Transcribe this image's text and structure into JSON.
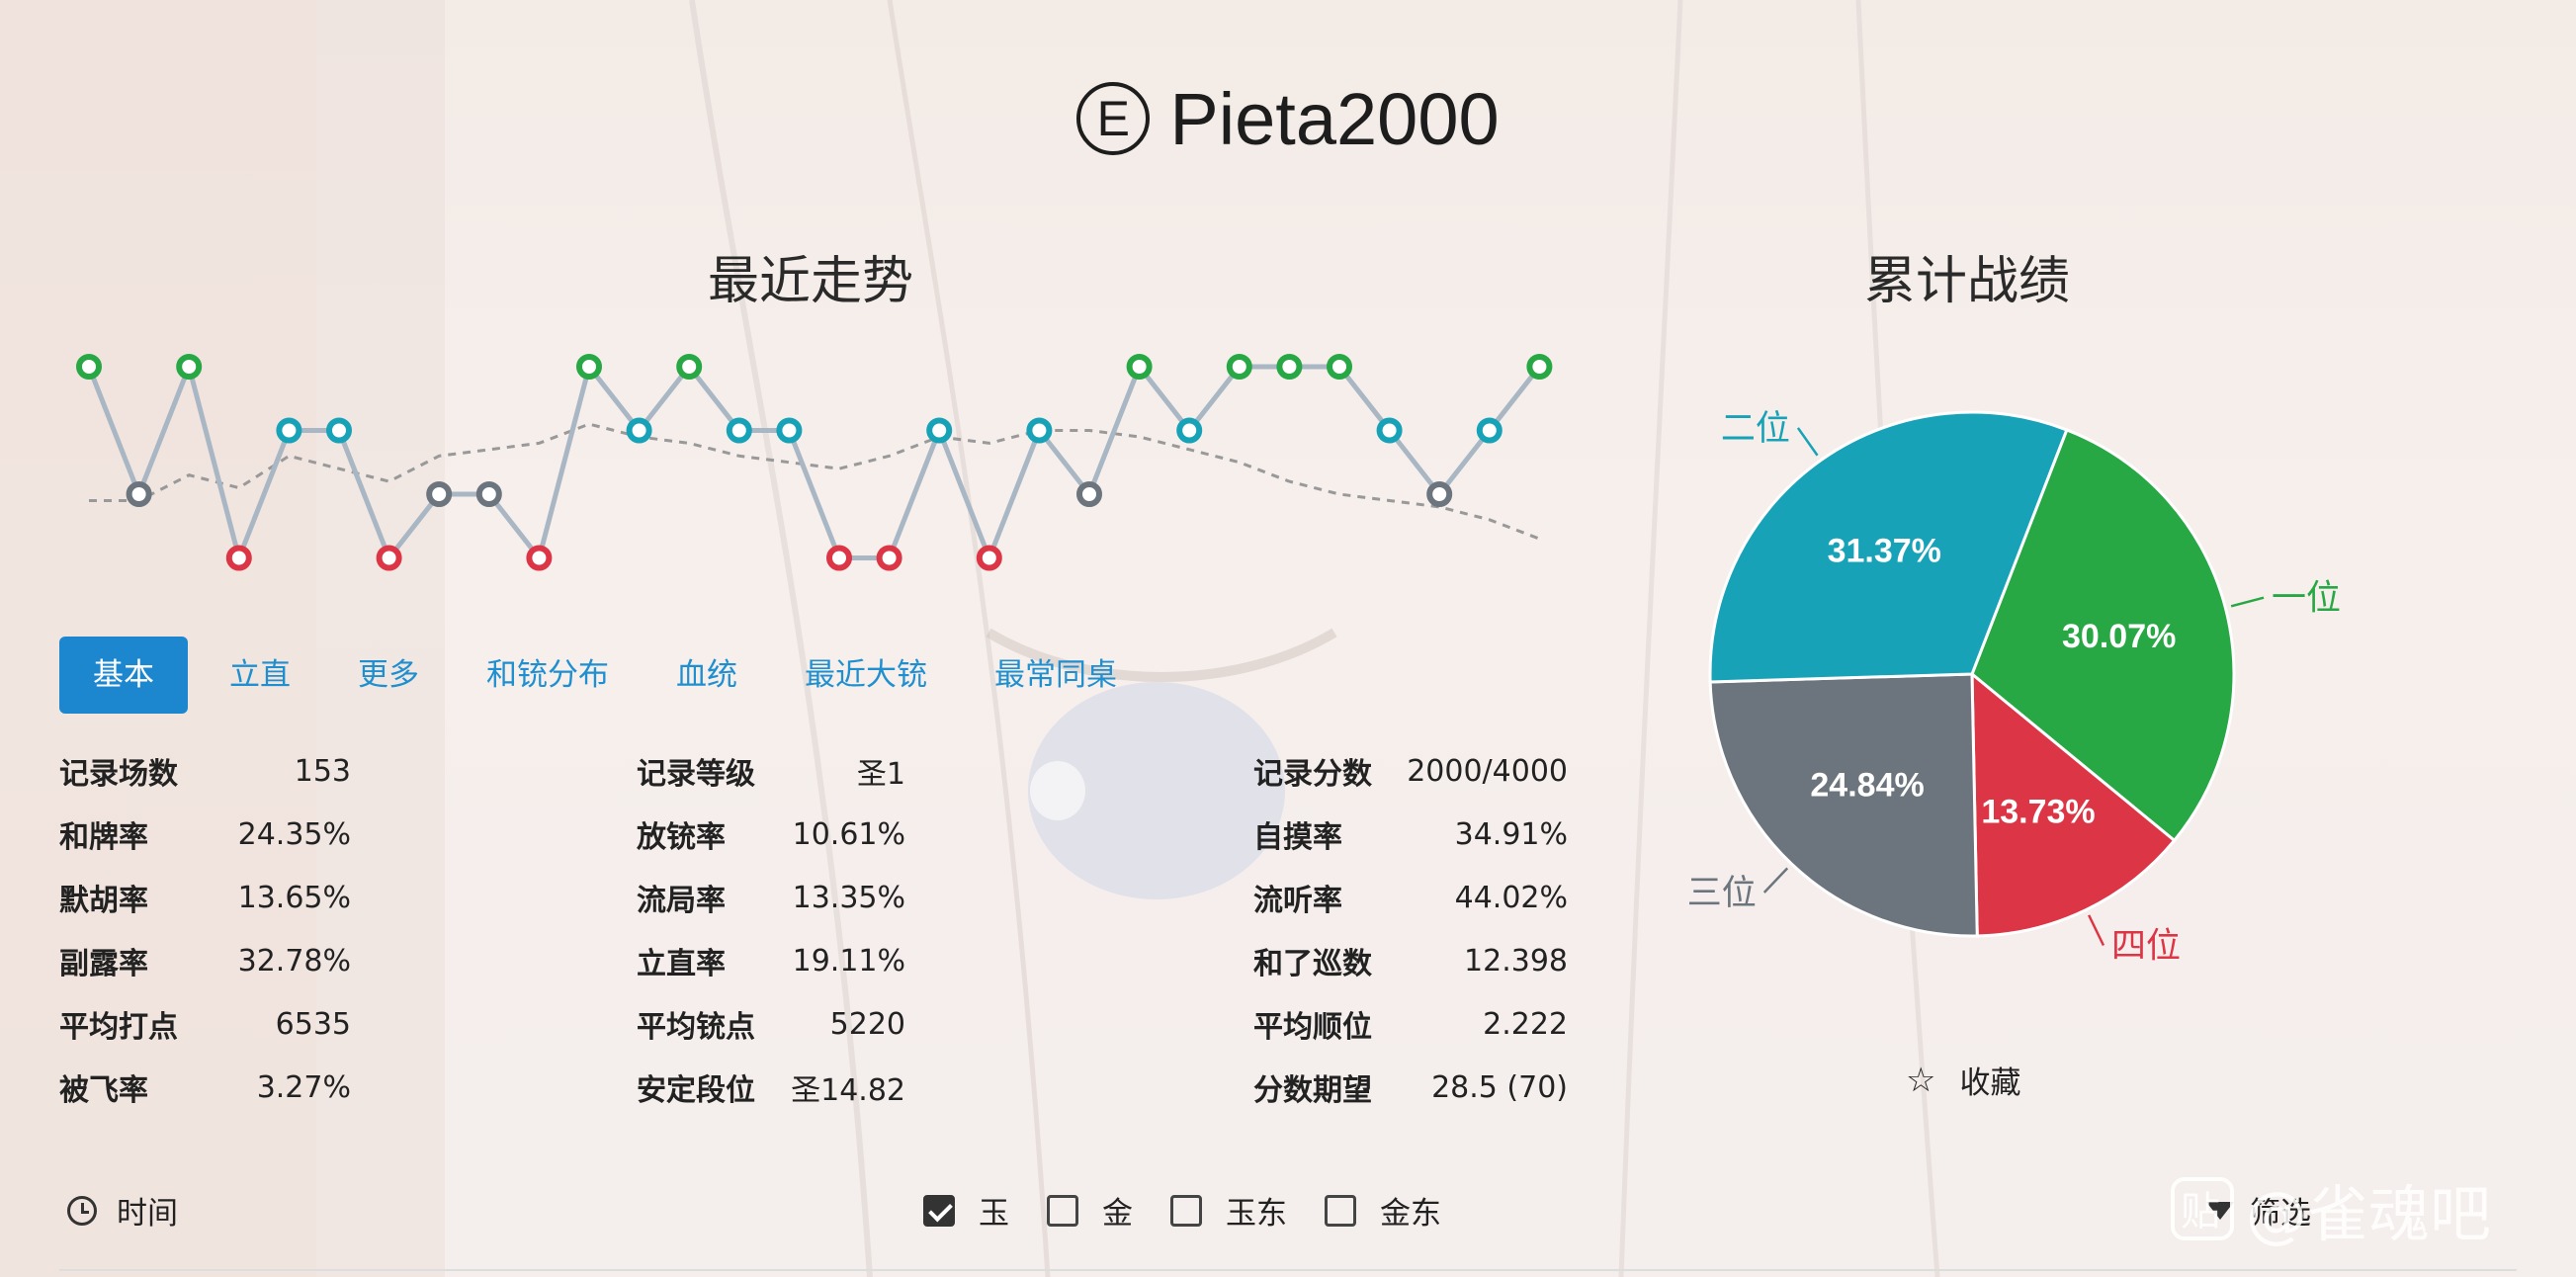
{
  "header": {
    "badge": "E",
    "player_name": "Pieta2000"
  },
  "trend": {
    "title": "最近走势",
    "ranks": [
      1,
      3,
      1,
      4,
      2,
      2,
      4,
      3,
      3,
      4,
      1,
      2,
      1,
      2,
      2,
      4,
      4,
      2,
      4,
      2,
      3,
      1,
      2,
      1,
      1,
      1,
      2,
      3,
      2,
      1
    ],
    "avg_line": [
      1.9,
      1.9,
      2.3,
      2.1,
      2.6,
      2.4,
      2.2,
      2.6,
      2.7,
      2.8,
      3.1,
      2.9,
      2.8,
      2.6,
      2.5,
      2.4,
      2.6,
      2.9,
      2.8,
      3.0,
      3.0,
      2.9,
      2.7,
      2.5,
      2.2,
      2.0,
      1.9,
      1.8,
      1.6,
      1.3
    ],
    "colors": {
      "1": "#28a745",
      "2": "#17a2b8",
      "3": "#6c757d",
      "4": "#dc3545"
    }
  },
  "tabs": [
    "基本",
    "立直",
    "更多",
    "和铳分布",
    "血统",
    "最近大铳",
    "最常同桌"
  ],
  "active_tab": 0,
  "stats": {
    "col1": [
      {
        "k": "记录场数",
        "v": "153"
      },
      {
        "k": "和牌率",
        "v": "24.35%"
      },
      {
        "k": "默胡率",
        "v": "13.65%"
      },
      {
        "k": "副露率",
        "v": "32.78%"
      },
      {
        "k": "平均打点",
        "v": "6535"
      },
      {
        "k": "被飞率",
        "v": "3.27%"
      }
    ],
    "col2": [
      {
        "k": "记录等级",
        "v": "圣1"
      },
      {
        "k": "放铳率",
        "v": "10.61%"
      },
      {
        "k": "流局率",
        "v": "13.35%"
      },
      {
        "k": "立直率",
        "v": "19.11%"
      },
      {
        "k": "平均铳点",
        "v": "5220"
      },
      {
        "k": "安定段位",
        "v": "圣14.82"
      }
    ],
    "col3": [
      {
        "k": "记录分数",
        "v": "2000/4000"
      },
      {
        "k": "自摸率",
        "v": "34.91%"
      },
      {
        "k": "流听率",
        "v": "44.02%"
      },
      {
        "k": "和了巡数",
        "v": "12.398"
      },
      {
        "k": "平均顺位",
        "v": "2.222"
      },
      {
        "k": "分数期望",
        "v": "28.5 (70)"
      }
    ]
  },
  "chart_data": {
    "type": "pie",
    "title": "累计战绩",
    "slices": [
      {
        "label": "一位",
        "value": 30.07,
        "text": "30.07%",
        "color": "#28a745"
      },
      {
        "label": "四位",
        "value": 13.73,
        "text": "13.73%",
        "color": "#dc3545"
      },
      {
        "label": "三位",
        "value": 24.84,
        "text": "24.84%",
        "color": "#6c757d"
      },
      {
        "label": "二位",
        "value": 31.37,
        "text": "31.37%",
        "color": "#17a2b8"
      }
    ]
  },
  "favorite": {
    "label": "收藏"
  },
  "footer": {
    "time_label": "时间",
    "modes": [
      {
        "label": "玉",
        "checked": true
      },
      {
        "label": "金",
        "checked": false
      },
      {
        "label": "玉东",
        "checked": false
      },
      {
        "label": "金东",
        "checked": false
      }
    ],
    "filter_label": "筛选"
  },
  "watermark": "@雀魂吧"
}
